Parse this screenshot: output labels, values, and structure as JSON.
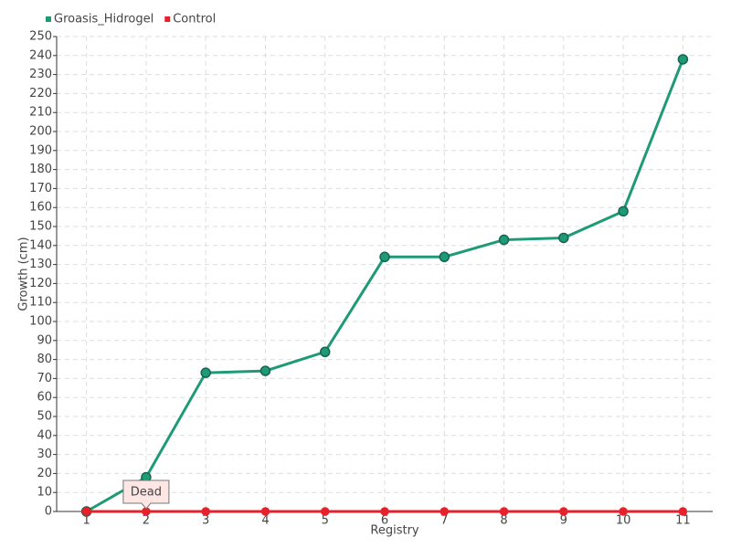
{
  "chart_data": {
    "type": "line",
    "categories": [
      "1",
      "2",
      "3",
      "4",
      "5",
      "6",
      "7",
      "8",
      "9",
      "10",
      "11"
    ],
    "series": [
      {
        "name": "Groasis_Hidrogel",
        "color": "#1f9a77",
        "values": [
          0,
          18,
          73,
          74,
          84,
          134,
          134,
          143,
          144,
          158,
          238
        ]
      },
      {
        "name": "Control",
        "color": "#e8202a",
        "values": [
          0,
          0,
          0,
          0,
          0,
          0,
          0,
          0,
          0,
          0,
          0
        ]
      }
    ],
    "x_label": "Registry",
    "y_label": "Growth (cm)",
    "annotation": "Dead",
    "ylim": [
      0,
      250
    ],
    "yticks": [
      0,
      10,
      20,
      30,
      40,
      50,
      60,
      70,
      80,
      90,
      100,
      110,
      120,
      130,
      140,
      150,
      160,
      170,
      180,
      190,
      200,
      210,
      220,
      230,
      240,
      250
    ],
    "grid": true,
    "legend": "top-left"
  }
}
